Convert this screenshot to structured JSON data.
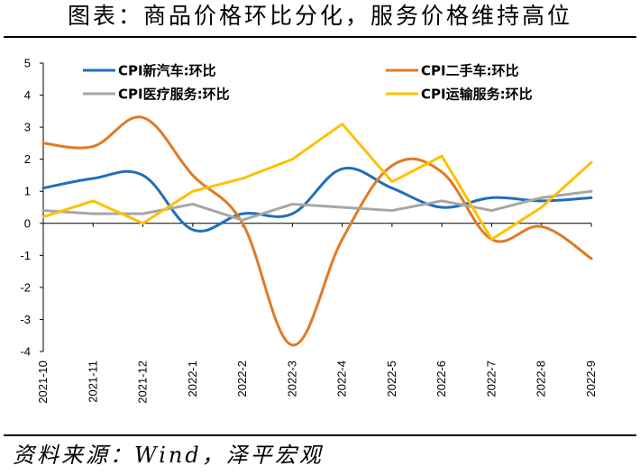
{
  "page": {
    "title": "图表：商品价格环比分化，服务价格维持高位",
    "source": "资料来源：Wind，泽平宏观"
  },
  "chart_data": {
    "type": "line",
    "title": "图表：商品价格环比分化，服务价格维持高位",
    "xlabel": "",
    "ylabel": "",
    "ylim": [
      -4,
      5
    ],
    "yticks": [
      "5",
      "4",
      "3",
      "2",
      "1",
      "0",
      "-1",
      "-2",
      "-3",
      "-4"
    ],
    "categories": [
      "2021-10",
      "2021-11",
      "2021-12",
      "2022-1",
      "2022-2",
      "2022-3",
      "2022-4",
      "2022-5",
      "2022-6",
      "2022-7",
      "2022-8",
      "2022-9"
    ],
    "legend_position": "top",
    "series": [
      {
        "name": "CPI新汽车:环比",
        "color": "#1f6fba",
        "values": [
          1.1,
          1.4,
          1.5,
          -0.2,
          0.3,
          0.3,
          1.7,
          1.1,
          0.5,
          0.8,
          0.7,
          0.8
        ]
      },
      {
        "name": "CPI二手车:环比",
        "color": "#e07a23",
        "values": [
          2.5,
          2.4,
          3.3,
          1.5,
          0.0,
          -3.8,
          -0.5,
          1.8,
          1.6,
          -0.5,
          -0.1,
          -1.1
        ]
      },
      {
        "name": "CPI医疗服务:环比",
        "color": "#a6a6a6",
        "values": [
          0.4,
          0.3,
          0.3,
          0.6,
          0.1,
          0.6,
          0.5,
          0.4,
          0.7,
          0.4,
          0.8,
          1.0
        ]
      },
      {
        "name": "CPI运输服务:环比",
        "color": "#ffc000",
        "values": [
          0.2,
          0.7,
          0.0,
          1.0,
          1.4,
          2.0,
          3.1,
          1.3,
          2.1,
          -0.5,
          0.5,
          1.9
        ]
      }
    ]
  }
}
